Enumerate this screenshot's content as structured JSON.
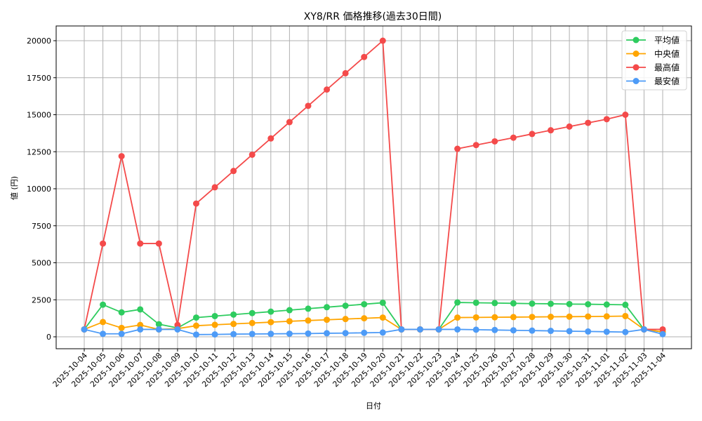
{
  "chart_data": {
    "type": "line",
    "title": "XY8/RR 価格推移(過去30日間)",
    "xlabel": "日付",
    "ylabel": "値 (円)",
    "ylim": [
      -850,
      21000
    ],
    "yticks": [
      0,
      2500,
      5000,
      7500,
      10000,
      12500,
      15000,
      17500,
      20000
    ],
    "grid": true,
    "legend_position": "upper right",
    "categories": [
      "2025-10-04",
      "2025-10-05",
      "2025-10-06",
      "2025-10-07",
      "2025-10-08",
      "2025-10-09",
      "2025-10-10",
      "2025-10-11",
      "2025-10-12",
      "2025-10-13",
      "2025-10-14",
      "2025-10-15",
      "2025-10-16",
      "2025-10-17",
      "2025-10-18",
      "2025-10-19",
      "2025-10-20",
      "2025-10-21",
      "2025-10-22",
      "2025-10-23",
      "2025-10-24",
      "2025-10-25",
      "2025-10-26",
      "2025-10-27",
      "2025-10-28",
      "2025-10-29",
      "2025-10-30",
      "2025-10-31",
      "2025-11-01",
      "2025-11-02",
      "2025-11-03",
      "2025-11-04"
    ],
    "series": [
      {
        "name": "平均値",
        "color": "#2ecc5f",
        "values": [
          500,
          2170,
          1650,
          1850,
          850,
          600,
          1300,
          1400,
          1500,
          1600,
          1700,
          1800,
          1900,
          2000,
          2100,
          2200,
          2300,
          500,
          500,
          500,
          2320,
          2300,
          2280,
          2260,
          2240,
          2230,
          2210,
          2200,
          2180,
          2160,
          500,
          330
        ]
      },
      {
        "name": "中央値",
        "color": "#ffa500",
        "values": [
          500,
          1000,
          600,
          800,
          500,
          550,
          750,
          810,
          870,
          930,
          990,
          1050,
          1100,
          1150,
          1200,
          1250,
          1300,
          500,
          500,
          500,
          1300,
          1310,
          1320,
          1330,
          1340,
          1350,
          1360,
          1370,
          1380,
          1400,
          500,
          330
        ]
      },
      {
        "name": "最高値",
        "color": "#f44a4a",
        "values": [
          500,
          6300,
          12200,
          6300,
          6300,
          800,
          9000,
          10100,
          11200,
          12300,
          13400,
          14500,
          15600,
          16700,
          17800,
          18900,
          20000,
          500,
          500,
          500,
          12700,
          12950,
          13200,
          13450,
          13700,
          13950,
          14200,
          14450,
          14700,
          15000,
          500,
          500
        ]
      },
      {
        "name": "最安値",
        "color": "#4d9bf7",
        "values": [
          500,
          200,
          200,
          500,
          500,
          500,
          150,
          160,
          180,
          190,
          200,
          210,
          220,
          240,
          250,
          270,
          290,
          500,
          500,
          500,
          500,
          480,
          460,
          440,
          420,
          400,
          380,
          360,
          340,
          320,
          500,
          180
        ]
      }
    ]
  }
}
